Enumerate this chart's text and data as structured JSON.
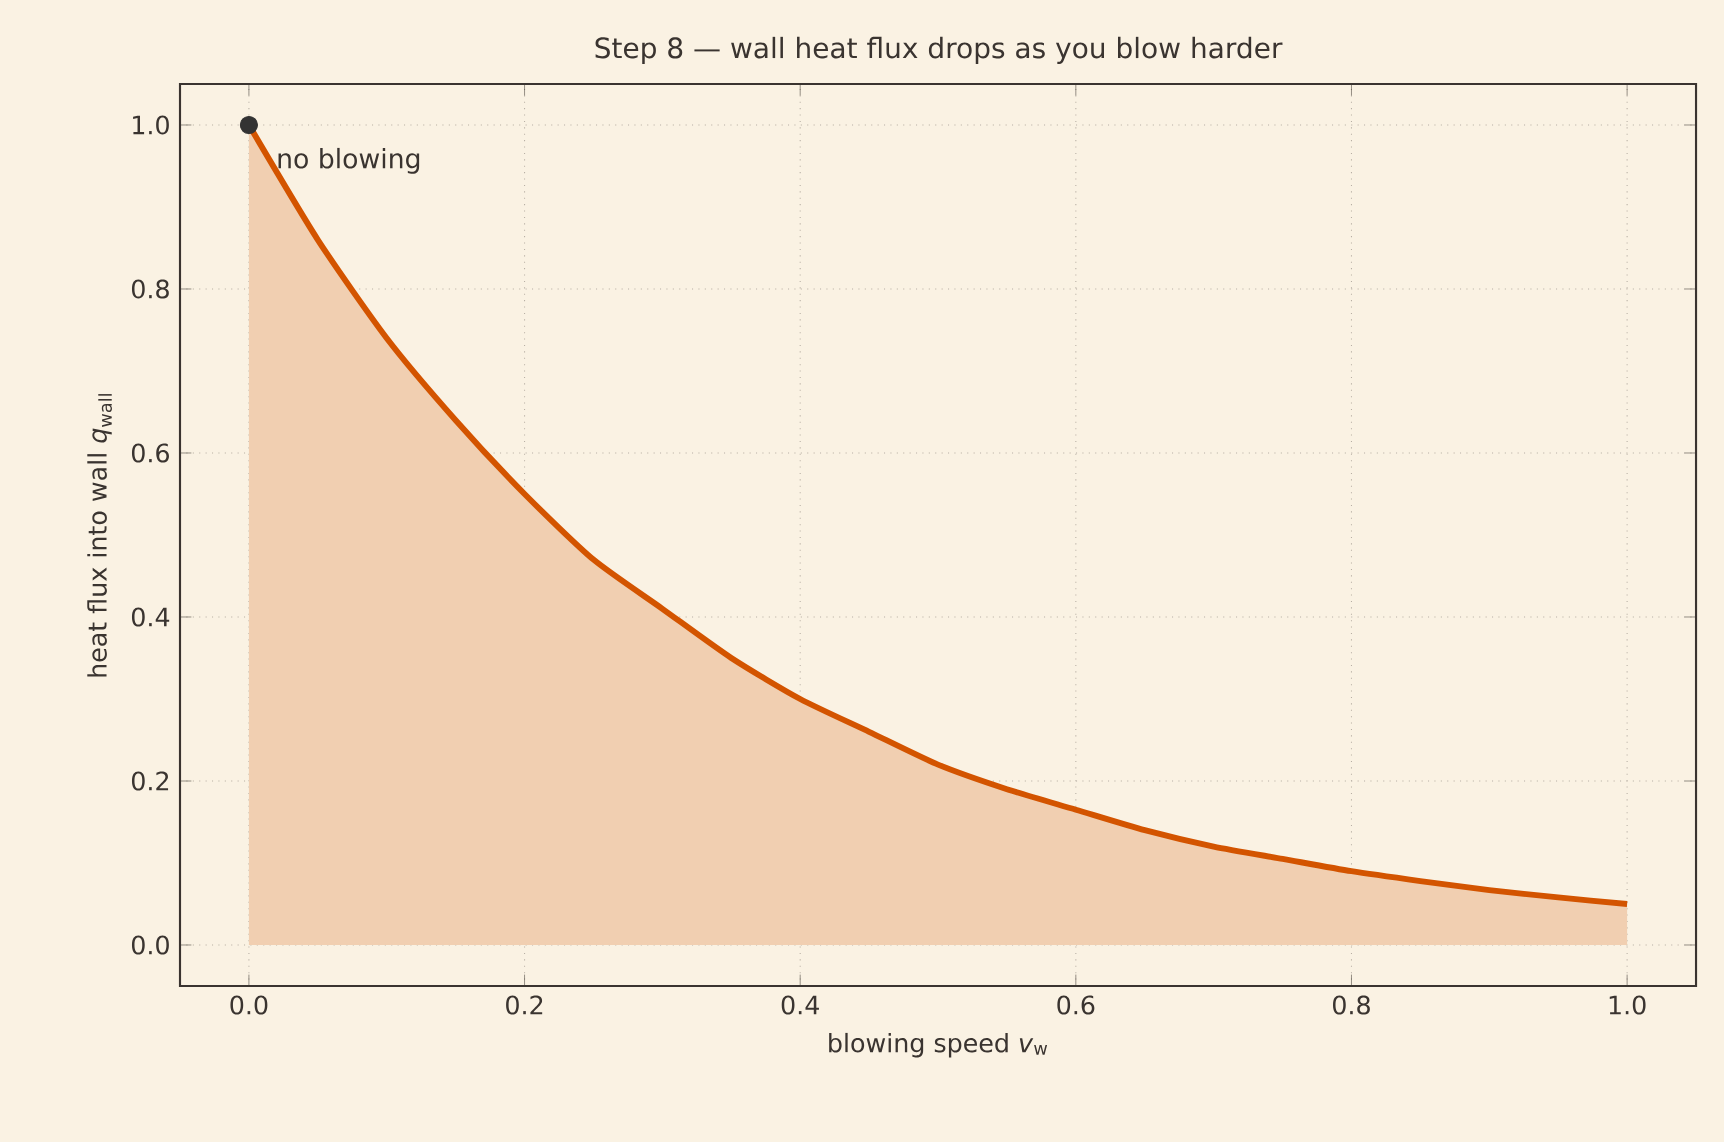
{
  "chart_data": {
    "type": "area",
    "title": "Step 8 — wall heat flux drops as you blow harder",
    "xlabel": "blowing speed  *v*$_{w}$",
    "ylabel": "heat flux into wall  *q*$_{wall}$",
    "series": [
      {
        "color": "#d35400",
        "x": [
          0,
          0.05,
          0.1,
          0.15,
          0.2,
          0.25,
          0.3,
          0.35,
          0.4,
          0.45,
          0.5,
          0.55,
          0.6,
          0.65,
          0.7,
          0.75,
          0.8,
          0.85,
          0.9,
          0.95,
          1.0
        ],
        "values": [
          1.0,
          0.86,
          0.74,
          0.64,
          0.55,
          0.47,
          0.41,
          0.35,
          0.3,
          0.26,
          0.22,
          0.19,
          0.165,
          0.14,
          0.12,
          0.105,
          0.09,
          0.078,
          0.067,
          0.058,
          0.05
        ]
      },
      {
        "type": "scatter",
        "color": "#333333",
        "x": [
          0
        ],
        "values": [
          1.0
        ],
        "marker": "circle"
      }
    ],
    "annotations": [
      {
        "text": "no blowing",
        "x": 0,
        "y": 1.0
      }
    ],
    "xlim": [
      -0.05,
      1.05
    ],
    "ylim": [
      -0.05,
      1.05
    ],
    "xticks": [
      {
        "value": 0,
        "label": "0.0"
      },
      {
        "value": 0.2,
        "label": "0.2"
      },
      {
        "value": 0.4,
        "label": "0.4"
      },
      {
        "value": 0.6,
        "label": "0.6"
      },
      {
        "value": 0.8,
        "label": "0.8"
      },
      {
        "value": 1.0,
        "label": "1.0"
      }
    ],
    "yticks": [
      {
        "value": 0,
        "label": "0.0"
      },
      {
        "value": 0.2,
        "label": "0.2"
      },
      {
        "value": 0.4,
        "label": "0.4"
      },
      {
        "value": 0.6,
        "label": "0.6"
      },
      {
        "value": 0.8,
        "label": "0.8"
      },
      {
        "value": 1.0,
        "label": "1.0"
      }
    ],
    "grid": true
  }
}
